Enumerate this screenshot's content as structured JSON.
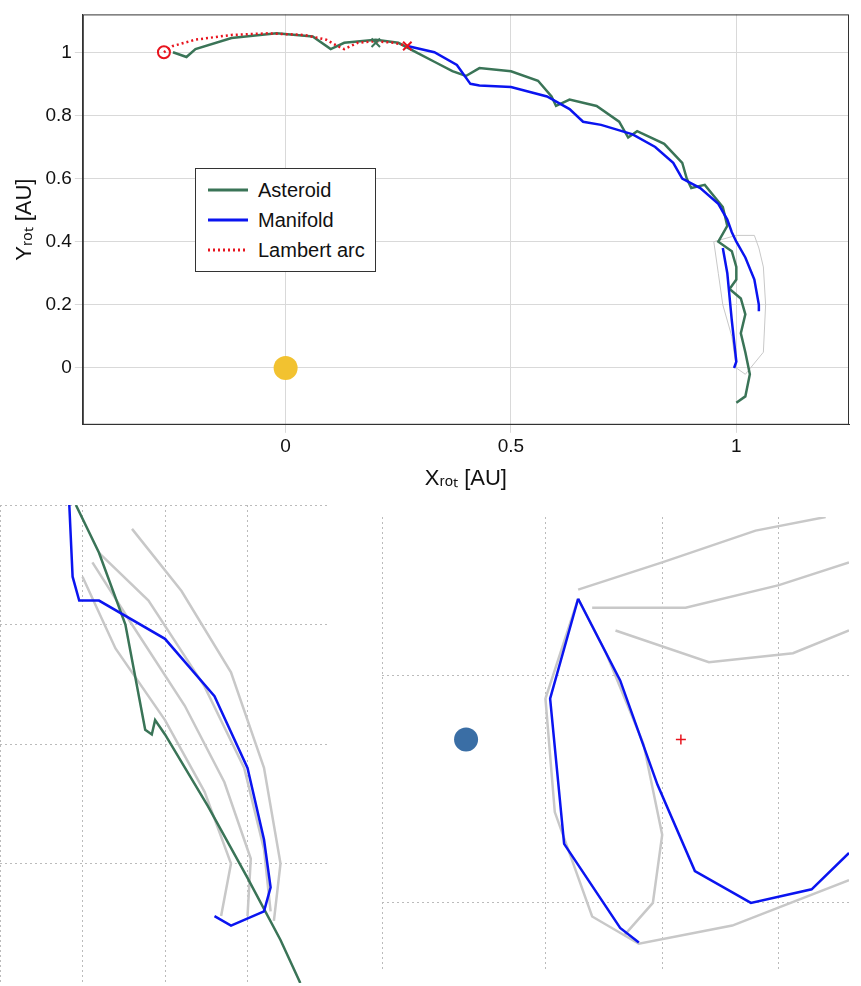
{
  "chart_data": [
    {
      "type": "line",
      "xlabel": "Xᵣₒₜ [AU]",
      "ylabel": "Yᵣₒₜ [AU]",
      "xlim": [
        -0.45,
        1.25
      ],
      "ylim": [
        -0.18,
        1.12
      ],
      "xticks": [
        0,
        0.5,
        1
      ],
      "yticks": [
        0,
        0.2,
        0.4,
        0.6,
        0.8,
        1
      ],
      "grid": true,
      "legend": "left",
      "series": [
        {
          "type": "area",
          "color": "#c8c8c8",
          "x": [
            0.95,
            0.96,
            0.97,
            0.99,
            1.0,
            1.02,
            1.06,
            1.065,
            1.06,
            1.05,
            1.04,
            1.0,
            0.95
          ],
          "values": [
            0.4,
            0.3,
            0.2,
            0.1,
            0.0,
            -0.02,
            0.05,
            0.2,
            0.32,
            0.38,
            0.42,
            0.42,
            0.4
          ]
        },
        {
          "name": "Asteroid",
          "type": "line",
          "color": "#3a7457",
          "line_style": "solid",
          "x": [
            -0.25,
            -0.22,
            -0.2,
            -0.12,
            -0.02,
            0.06,
            0.1,
            0.13,
            0.2,
            0.25,
            0.29,
            0.33,
            0.37,
            0.4,
            0.43,
            0.5,
            0.56,
            0.59,
            0.6,
            0.63,
            0.69,
            0.74,
            0.76,
            0.78,
            0.84,
            0.88,
            0.89,
            0.9,
            0.93,
            0.97,
            0.98,
            0.96,
            0.99,
            1.0,
            1.0,
            0.985,
            1.01,
            1.02,
            1.01,
            1.02,
            1.03,
            1.02,
            1.0
          ],
          "values": [
            1.0,
            0.985,
            1.01,
            1.045,
            1.06,
            1.05,
            1.01,
            1.03,
            1.04,
            1.03,
            1.0,
            0.97,
            0.94,
            0.925,
            0.95,
            0.94,
            0.91,
            0.86,
            0.83,
            0.85,
            0.83,
            0.78,
            0.73,
            0.75,
            0.71,
            0.65,
            0.6,
            0.57,
            0.58,
            0.51,
            0.45,
            0.4,
            0.37,
            0.32,
            0.28,
            0.25,
            0.22,
            0.17,
            0.11,
            0.05,
            -0.02,
            -0.09,
            -0.11
          ]
        },
        {
          "name": "Manifold",
          "type": "line",
          "color": "#0a14f0",
          "line_style": "solid",
          "x": [
            0.27,
            0.33,
            0.38,
            0.41,
            0.43,
            0.5,
            0.58,
            0.63,
            0.66,
            0.7,
            0.77,
            0.82,
            0.86,
            0.88,
            0.92,
            0.96,
            0.98,
            0.99,
            1.0,
            1.02,
            1.04,
            1.05,
            1.05,
            null,
            0.97,
            0.98,
            0.99,
            1.0,
            0.995
          ],
          "values": [
            1.02,
            1.0,
            0.96,
            0.9,
            0.895,
            0.89,
            0.86,
            0.82,
            0.78,
            0.77,
            0.74,
            0.7,
            0.65,
            0.6,
            0.57,
            0.52,
            0.47,
            0.43,
            0.4,
            0.35,
            0.28,
            0.2,
            0.18,
            null,
            0.38,
            0.3,
            0.15,
            0.02,
            0.0
          ]
        },
        {
          "name": "Lambert arc",
          "type": "line",
          "color": "#e8141e",
          "line_style": "dotted",
          "x": [
            -0.27,
            -0.25,
            -0.2,
            -0.12,
            -0.04,
            0.04,
            0.09,
            0.115,
            0.13,
            0.16,
            0.2,
            0.24,
            0.27
          ],
          "values": [
            1.0,
            1.02,
            1.04,
            1.055,
            1.06,
            1.055,
            1.04,
            1.02,
            1.01,
            1.03,
            1.035,
            1.03,
            1.02
          ]
        },
        {
          "type": "scatter",
          "color": "#e8141e",
          "marker": "circle",
          "x": [
            -0.27
          ],
          "values": [
            1.0
          ]
        },
        {
          "type": "scatter",
          "color": "#e8141e",
          "marker": "x",
          "x": [
            0.27
          ],
          "values": [
            1.02
          ]
        },
        {
          "type": "scatter",
          "color": "#3a7457",
          "marker": "x",
          "x": [
            0.2
          ],
          "values": [
            1.03
          ]
        },
        {
          "type": "scatter",
          "color": "#f2c230",
          "marker": "disc",
          "x": [
            0
          ],
          "values": [
            0
          ]
        }
      ]
    },
    {
      "type": "line",
      "xlim": [
        0,
        1
      ],
      "ylim": [
        0,
        1
      ],
      "xticks": [
        0,
        0.25,
        0.5,
        0.75,
        1
      ],
      "yticks": [
        0,
        0.25,
        0.5,
        0.75,
        1
      ],
      "grid": true,
      "tick_labels": false,
      "series": [
        {
          "type": "line",
          "color": "#c8c8c8",
          "x": [
            0.3,
            0.45,
            0.62,
            0.74,
            0.8,
            0.82
          ],
          "values": [
            0.9,
            0.8,
            0.62,
            0.45,
            0.28,
            0.15
          ]
        },
        {
          "type": "line",
          "color": "#c8c8c8",
          "x": [
            0.4,
            0.55,
            0.7,
            0.8,
            0.85,
            0.83
          ],
          "values": [
            0.95,
            0.82,
            0.65,
            0.45,
            0.25,
            0.13
          ]
        },
        {
          "type": "line",
          "color": "#c8c8c8",
          "x": [
            0.25,
            0.35,
            0.5,
            0.62,
            0.7,
            0.67
          ],
          "values": [
            0.85,
            0.7,
            0.55,
            0.4,
            0.25,
            0.14
          ]
        },
        {
          "type": "line",
          "color": "#c8c8c8",
          "x": [
            0.28,
            0.4,
            0.56,
            0.68,
            0.76,
            0.75
          ],
          "values": [
            0.88,
            0.75,
            0.58,
            0.42,
            0.26,
            0.14
          ]
        },
        {
          "type": "line",
          "color": "#3a7457",
          "x": [
            0.23,
            0.3,
            0.38,
            0.44,
            0.46,
            0.47,
            0.5,
            0.63,
            0.75,
            0.85,
            0.91
          ],
          "values": [
            1.0,
            0.9,
            0.75,
            0.53,
            0.52,
            0.55,
            0.52,
            0.37,
            0.22,
            0.09,
            0.0
          ]
        },
        {
          "type": "line",
          "color": "#0a14f0",
          "x": [
            0.21,
            0.22,
            0.24,
            0.3,
            0.5,
            0.65,
            0.75,
            0.8,
            0.82,
            0.8,
            0.7,
            0.65
          ],
          "values": [
            1.0,
            0.85,
            0.8,
            0.8,
            0.72,
            0.6,
            0.45,
            0.3,
            0.2,
            0.15,
            0.12,
            0.14
          ]
        }
      ]
    },
    {
      "type": "line",
      "xlim": [
        0,
        1
      ],
      "ylim": [
        0,
        1
      ],
      "xticks": [
        0,
        0.35,
        0.6,
        0.85
      ],
      "yticks": [
        0.15,
        0.65
      ],
      "grid": true,
      "tick_labels": false,
      "series": [
        {
          "type": "line",
          "color": "#c8c8c8",
          "x": [
            0.42,
            0.6,
            0.8,
            0.95
          ],
          "values": [
            0.84,
            0.9,
            0.97,
            1.0
          ]
        },
        {
          "type": "line",
          "color": "#c8c8c8",
          "x": [
            0.45,
            0.65,
            0.85,
            1.0
          ],
          "values": [
            0.8,
            0.8,
            0.85,
            0.9
          ]
        },
        {
          "type": "line",
          "color": "#c8c8c8",
          "x": [
            0.5,
            0.7,
            0.88,
            1.0
          ],
          "values": [
            0.75,
            0.68,
            0.7,
            0.75
          ]
        },
        {
          "type": "line",
          "color": "#c8c8c8",
          "x": [
            0.42,
            0.35,
            0.37,
            0.45,
            0.55,
            0.75,
            1.0
          ],
          "values": [
            0.82,
            0.6,
            0.35,
            0.12,
            0.06,
            0.1,
            0.2
          ]
        },
        {
          "type": "line",
          "color": "#c8c8c8",
          "x": [
            0.42,
            0.48,
            0.56,
            0.6,
            0.58,
            0.52
          ],
          "values": [
            0.82,
            0.7,
            0.5,
            0.3,
            0.15,
            0.08
          ]
        },
        {
          "type": "line",
          "color": "#0a14f0",
          "x": [
            0.42,
            0.36,
            0.39,
            0.51,
            0.55
          ],
          "values": [
            0.82,
            0.6,
            0.28,
            0.095,
            0.063
          ]
        },
        {
          "type": "line",
          "color": "#0a14f0",
          "x": [
            0.42,
            0.51,
            0.59,
            0.67,
            0.79,
            0.92,
            1.0
          ],
          "values": [
            0.82,
            0.64,
            0.41,
            0.22,
            0.15,
            0.18,
            0.26
          ]
        },
        {
          "type": "scatter",
          "color": "#3a6ea5",
          "marker": "disc",
          "x": [
            0.18
          ],
          "values": [
            0.51
          ]
        },
        {
          "type": "scatter",
          "color": "#e8141e",
          "marker": "plus",
          "x": [
            0.64
          ],
          "values": [
            0.51
          ]
        }
      ]
    }
  ]
}
